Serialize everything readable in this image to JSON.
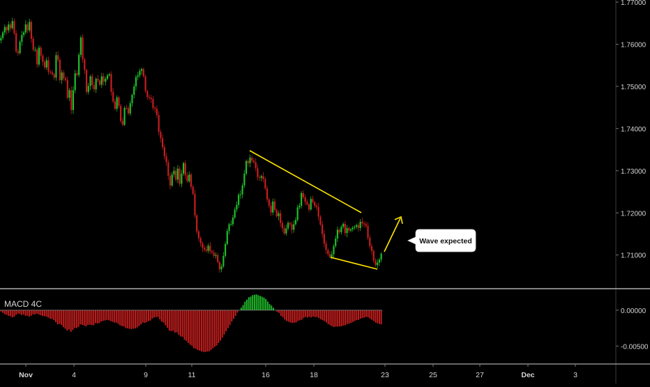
{
  "colors": {
    "background": "#000000",
    "up": "#1fbf2a",
    "down": "#c81e1e",
    "trendline": "#ffe600",
    "axis_text": "#d6d6d6",
    "separator": "#cfcfcf",
    "callout_bg": "#ffffff",
    "callout_text": "#111111"
  },
  "annotation": {
    "text": "Wave expected"
  },
  "chart_data": [
    {
      "type": "candlestick",
      "title": "",
      "ylim": [
        1.7035,
        1.7705
      ],
      "x_ticks": [
        "Nov",
        "4",
        "9",
        "11",
        "16",
        "18",
        "23",
        "25",
        "27",
        "Dec",
        "3"
      ],
      "y_ticks": [
        "1.77000",
        "1.76000",
        "1.75000",
        "1.74000",
        "1.73000",
        "1.72000",
        "1.71000"
      ],
      "candles_close": [
        1.7615,
        1.7628,
        1.7641,
        1.7633,
        1.7647,
        1.7638,
        1.7655,
        1.7626,
        1.7583,
        1.7579,
        1.7606,
        1.7622,
        1.7628,
        1.7647,
        1.7633,
        1.7653,
        1.7613,
        1.7587,
        1.7587,
        1.7552,
        1.7592,
        1.7573,
        1.7558,
        1.7545,
        1.7562,
        1.7535,
        1.7533,
        1.7529,
        1.7521,
        1.7574,
        1.7563,
        1.7515,
        1.7533,
        1.7519,
        1.7515,
        1.7473,
        1.7491,
        1.7444,
        1.7491,
        1.7531,
        1.7527,
        1.7575,
        1.7616,
        1.7564,
        1.7539,
        1.7487,
        1.7501,
        1.7524,
        1.7503,
        1.7493,
        1.7518,
        1.7514,
        1.7504,
        1.7524,
        1.7511,
        1.7518,
        1.7526,
        1.7529,
        1.7487,
        1.7464,
        1.7447,
        1.7474,
        1.7454,
        1.7418,
        1.7409,
        1.7449,
        1.7448,
        1.7436,
        1.746,
        1.748,
        1.75,
        1.7522,
        1.7526,
        1.7537,
        1.7541,
        1.7524,
        1.7489,
        1.7475,
        1.7473,
        1.747,
        1.7449,
        1.7447,
        1.7432,
        1.7392,
        1.7377,
        1.7356,
        1.7334,
        1.732,
        1.7288,
        1.7265,
        1.7291,
        1.73,
        1.7279,
        1.7305,
        1.7269,
        1.7293,
        1.7318,
        1.7289,
        1.7275,
        1.7291,
        1.7262,
        1.7245,
        1.7194,
        1.7156,
        1.714,
        1.7128,
        1.7117,
        1.7113,
        1.711,
        1.7122,
        1.7109,
        1.7106,
        1.7098,
        1.71,
        1.7083,
        1.7066,
        1.7073,
        1.7098,
        1.7126,
        1.7157,
        1.7173,
        1.7173,
        1.7189,
        1.7208,
        1.7219,
        1.7243,
        1.7244,
        1.7265,
        1.7293,
        1.7323,
        1.7318,
        1.7331,
        1.7324,
        1.732,
        1.7306,
        1.7285,
        1.7283,
        1.7287,
        1.728,
        1.7258,
        1.7232,
        1.7217,
        1.7201,
        1.7227,
        1.7207,
        1.7192,
        1.7199,
        1.7176,
        1.7164,
        1.7151,
        1.7163,
        1.7176,
        1.7173,
        1.716,
        1.7173,
        1.7183,
        1.7213,
        1.7217,
        1.7247,
        1.7237,
        1.7226,
        1.722,
        1.7208,
        1.7233,
        1.7225,
        1.7217,
        1.7214,
        1.7191,
        1.7172,
        1.715,
        1.7127,
        1.7112,
        1.7102,
        1.7095,
        1.7102,
        1.7121,
        1.7139,
        1.716,
        1.7154,
        1.7167,
        1.7174,
        1.7152,
        1.7164,
        1.7158,
        1.7161,
        1.7165,
        1.7167,
        1.7171,
        1.7164,
        1.7179,
        1.7175,
        1.7173,
        1.7169,
        1.7141,
        1.7121,
        1.711,
        1.7087,
        1.7076,
        1.7082,
        1.7089,
        1.7103
      ]
    },
    {
      "type": "bar",
      "title": "MACD 4C",
      "ylim": [
        -0.0074,
        0.0029
      ],
      "y_ticks": [
        "0.00000",
        "-0.00500"
      ],
      "values": [
        -0.00016,
        -0.00037,
        -0.00056,
        -0.00064,
        -0.00079,
        -0.00084,
        -0.001,
        -0.0009,
        -0.00064,
        -0.00047,
        -0.00055,
        -0.00067,
        -0.00059,
        -0.00079,
        -0.00076,
        -0.0009,
        -0.00076,
        -0.00057,
        -0.0006,
        -0.00047,
        -0.00061,
        -0.00069,
        -0.00081,
        -0.00083,
        -0.0009,
        -0.00103,
        -0.00119,
        -0.00118,
        -0.00138,
        -0.00167,
        -0.00196,
        -0.00191,
        -0.00206,
        -0.00237,
        -0.00258,
        -0.00283,
        -0.00269,
        -0.00302,
        -0.00277,
        -0.00248,
        -0.00249,
        -0.00233,
        -0.00198,
        -0.00206,
        -0.00214,
        -0.00227,
        -0.00205,
        -0.00202,
        -0.00209,
        -0.00209,
        -0.00181,
        -0.00184,
        -0.00181,
        -0.00158,
        -0.00149,
        -0.00144,
        -0.00135,
        -0.00141,
        -0.00153,
        -0.00162,
        -0.00173,
        -0.00172,
        -0.00192,
        -0.00213,
        -0.00222,
        -0.00227,
        -0.00249,
        -0.00253,
        -0.0026,
        -0.00262,
        -0.00258,
        -0.00253,
        -0.0024,
        -0.00221,
        -0.00198,
        -0.00172,
        -0.00178,
        -0.00166,
        -0.0015,
        -0.00144,
        -0.00116,
        -0.00102,
        -0.00094,
        -0.00094,
        -0.00128,
        -0.00159,
        -0.00173,
        -0.00211,
        -0.00247,
        -0.00285,
        -0.00292,
        -0.00286,
        -0.00311,
        -0.00309,
        -0.00345,
        -0.00366,
        -0.0037,
        -0.00412,
        -0.00428,
        -0.00457,
        -0.00481,
        -0.00496,
        -0.00529,
        -0.00537,
        -0.00555,
        -0.00563,
        -0.00575,
        -0.0058,
        -0.00584,
        -0.00576,
        -0.00574,
        -0.00555,
        -0.00531,
        -0.00508,
        -0.00493,
        -0.00458,
        -0.00424,
        -0.00382,
        -0.00339,
        -0.00294,
        -0.0025,
        -0.00208,
        -0.00158,
        -0.00119,
        -0.0008,
        -0.00034,
        4e-05,
        0.00035,
        0.00072,
        0.00119,
        0.00146,
        0.0018,
        0.00189,
        0.00209,
        0.00215,
        0.0022,
        0.00209,
        0.00199,
        0.00188,
        0.00175,
        0.00155,
        0.00121,
        0.00085,
        0.00065,
        0.00034,
        0.0,
        -0.00024,
        -0.00039,
        -0.0008,
        -0.00099,
        -0.00131,
        -0.0015,
        -0.00161,
        -0.00172,
        -0.00178,
        -0.00175,
        -0.00171,
        -0.0015,
        -0.0014,
        -0.00133,
        -0.00108,
        -0.00093,
        -0.00102,
        -0.00092,
        -0.00101,
        -0.00088,
        -0.00096,
        -0.00095,
        -0.0011,
        -0.00126,
        -0.00139,
        -0.00153,
        -0.00171,
        -0.00196,
        -0.00209,
        -0.00224,
        -0.00235,
        -0.00228,
        -0.0023,
        -0.00225,
        -0.00225,
        -0.00214,
        -0.00209,
        -0.00193,
        -0.00188,
        -0.00178,
        -0.00164,
        -0.00151,
        -0.00138,
        -0.00136,
        -0.00118,
        -0.00109,
        -0.00103,
        -0.00094,
        -0.00098,
        -0.00116,
        -0.00132,
        -0.00151,
        -0.00172,
        -0.00183,
        -0.00192,
        -0.00198
      ]
    }
  ]
}
